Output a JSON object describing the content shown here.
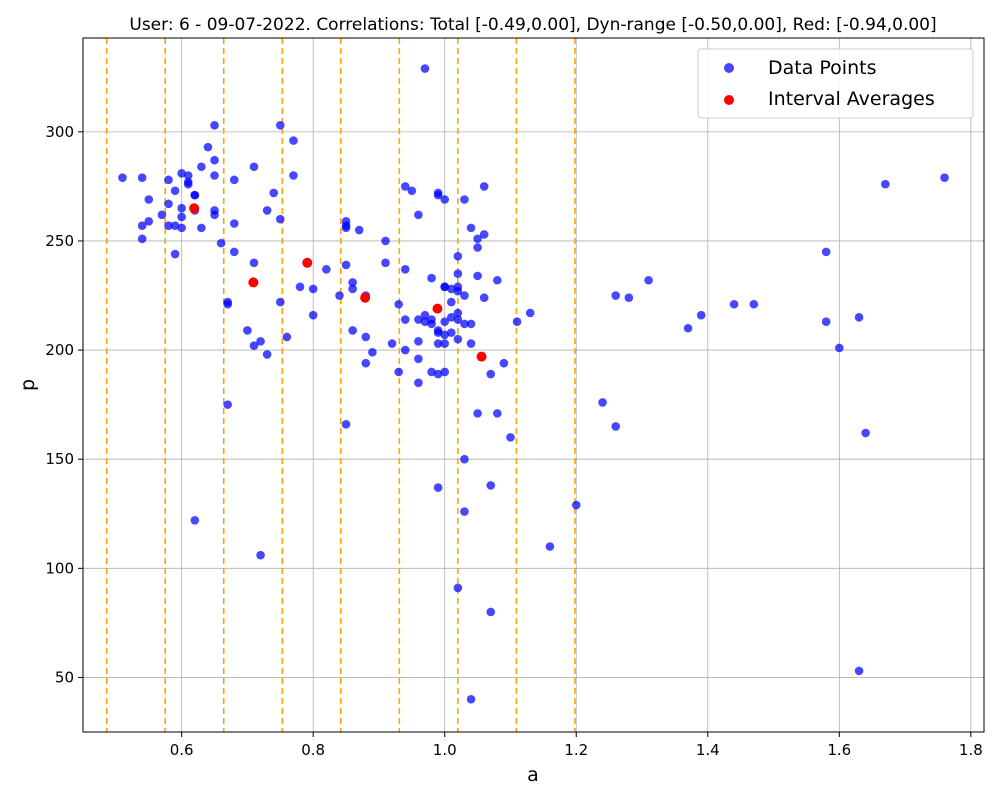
{
  "chart_data": {
    "type": "scatter",
    "title": "User: 6 - 09-07-2022. Correlations: Total [-0.49,0.00], Dyn-range [-0.50,0.00], Red: [-0.94,0.00]",
    "xlabel": "a",
    "ylabel": "p",
    "xlim": [
      0.45,
      1.82
    ],
    "ylim": [
      25,
      343
    ],
    "xticks": [
      0.6,
      0.8,
      1.0,
      1.2,
      1.4,
      1.6,
      1.8
    ],
    "xtick_labels": [
      "0.6",
      "0.8",
      "1.0",
      "1.2",
      "1.4",
      "1.6",
      "1.8"
    ],
    "yticks": [
      50,
      100,
      150,
      200,
      250,
      300
    ],
    "ytick_labels": [
      "50",
      "100",
      "150",
      "200",
      "250",
      "300"
    ],
    "grid": true,
    "legend_position": "top-right",
    "interval_boundaries": [
      0.486,
      0.575,
      0.664,
      0.753,
      0.842,
      0.931,
      1.02,
      1.109,
      1.198
    ],
    "interval_line_color": "#ffa500",
    "series": [
      {
        "name": "Data Points",
        "color": "#0000ff",
        "points": [
          [
            0.51,
            279
          ],
          [
            0.54,
            279
          ],
          [
            0.55,
            269
          ],
          [
            0.54,
            257
          ],
          [
            0.55,
            259
          ],
          [
            0.54,
            251
          ],
          [
            0.57,
            262
          ],
          [
            0.58,
            278
          ],
          [
            0.58,
            267
          ],
          [
            0.58,
            257
          ],
          [
            0.59,
            273
          ],
          [
            0.59,
            257
          ],
          [
            0.59,
            244
          ],
          [
            0.6,
            281
          ],
          [
            0.6,
            265
          ],
          [
            0.6,
            261
          ],
          [
            0.6,
            256
          ],
          [
            0.61,
            280
          ],
          [
            0.61,
            277
          ],
          [
            0.61,
            276
          ],
          [
            0.62,
            271
          ],
          [
            0.62,
            271
          ],
          [
            0.62,
            264
          ],
          [
            0.63,
            284
          ],
          [
            0.63,
            256
          ],
          [
            0.64,
            293
          ],
          [
            0.65,
            303
          ],
          [
            0.65,
            287
          ],
          [
            0.65,
            280
          ],
          [
            0.65,
            264
          ],
          [
            0.65,
            262
          ],
          [
            0.66,
            249
          ],
          [
            0.67,
            222
          ],
          [
            0.67,
            221
          ],
          [
            0.67,
            175
          ],
          [
            0.68,
            278
          ],
          [
            0.68,
            258
          ],
          [
            0.68,
            245
          ],
          [
            0.7,
            209
          ],
          [
            0.71,
            284
          ],
          [
            0.71,
            240
          ],
          [
            0.71,
            202
          ],
          [
            0.72,
            204
          ],
          [
            0.72,
            106
          ],
          [
            0.73,
            198
          ],
          [
            0.73,
            264
          ],
          [
            0.74,
            272
          ],
          [
            0.75,
            303
          ],
          [
            0.75,
            260
          ],
          [
            0.75,
            222
          ],
          [
            0.76,
            206
          ],
          [
            0.77,
            296
          ],
          [
            0.77,
            280
          ],
          [
            0.78,
            229
          ],
          [
            0.8,
            228
          ],
          [
            0.8,
            216
          ],
          [
            0.82,
            237
          ],
          [
            0.84,
            225
          ],
          [
            0.85,
            259
          ],
          [
            0.85,
            257
          ],
          [
            0.85,
            256
          ],
          [
            0.85,
            239
          ],
          [
            0.85,
            166
          ],
          [
            0.86,
            231
          ],
          [
            0.86,
            228
          ],
          [
            0.86,
            209
          ],
          [
            0.87,
            255
          ],
          [
            0.88,
            225
          ],
          [
            0.88,
            206
          ],
          [
            0.88,
            194
          ],
          [
            0.89,
            199
          ],
          [
            0.91,
            250
          ],
          [
            0.91,
            240
          ],
          [
            0.92,
            203
          ],
          [
            0.93,
            221
          ],
          [
            0.93,
            190
          ],
          [
            0.94,
            275
          ],
          [
            0.94,
            237
          ],
          [
            0.94,
            214
          ],
          [
            0.94,
            200
          ],
          [
            0.95,
            273
          ],
          [
            0.96,
            262
          ],
          [
            0.96,
            214
          ],
          [
            0.96,
            204
          ],
          [
            0.96,
            196
          ],
          [
            0.96,
            185
          ],
          [
            0.97,
            329
          ],
          [
            0.97,
            216
          ],
          [
            0.97,
            213
          ],
          [
            0.98,
            233
          ],
          [
            0.98,
            214
          ],
          [
            0.98,
            212
          ],
          [
            0.98,
            190
          ],
          [
            0.99,
            272
          ],
          [
            0.99,
            271
          ],
          [
            0.99,
            209
          ],
          [
            0.99,
            208
          ],
          [
            0.99,
            203
          ],
          [
            0.99,
            189
          ],
          [
            0.99,
            137
          ],
          [
            1.0,
            269
          ],
          [
            1.0,
            229
          ],
          [
            1.0,
            213
          ],
          [
            1.0,
            207
          ],
          [
            1.0,
            203
          ],
          [
            1.0,
            190
          ],
          [
            1.01,
            228
          ],
          [
            1.01,
            222
          ],
          [
            1.01,
            215
          ],
          [
            1.01,
            208
          ],
          [
            1.02,
            243
          ],
          [
            1.02,
            235
          ],
          [
            1.02,
            229
          ],
          [
            1.02,
            227
          ],
          [
            1.02,
            217
          ],
          [
            1.02,
            214
          ],
          [
            1.02,
            205
          ],
          [
            1.02,
            91
          ],
          [
            1.03,
            269
          ],
          [
            1.03,
            225
          ],
          [
            1.03,
            212
          ],
          [
            1.03,
            150
          ],
          [
            1.03,
            126
          ],
          [
            1.04,
            256
          ],
          [
            1.04,
            212
          ],
          [
            1.04,
            203
          ],
          [
            1.04,
            40
          ],
          [
            1.05,
            251
          ],
          [
            1.05,
            247
          ],
          [
            1.05,
            234
          ],
          [
            1.05,
            171
          ],
          [
            1.06,
            275
          ],
          [
            1.06,
            253
          ],
          [
            1.06,
            224
          ],
          [
            1.07,
            189
          ],
          [
            1.07,
            138
          ],
          [
            1.07,
            80
          ],
          [
            1.08,
            232
          ],
          [
            1.08,
            171
          ],
          [
            1.09,
            194
          ],
          [
            1.1,
            160
          ],
          [
            1.11,
            213
          ],
          [
            1.13,
            217
          ],
          [
            1.16,
            110
          ],
          [
            1.2,
            129
          ],
          [
            1.24,
            176
          ],
          [
            1.26,
            225
          ],
          [
            1.26,
            165
          ],
          [
            1.28,
            224
          ],
          [
            1.31,
            232
          ],
          [
            1.37,
            210
          ],
          [
            1.39,
            216
          ],
          [
            1.44,
            221
          ],
          [
            1.47,
            221
          ],
          [
            1.58,
            245
          ],
          [
            1.58,
            213
          ],
          [
            1.6,
            201
          ],
          [
            1.63,
            215
          ],
          [
            1.63,
            53
          ],
          [
            1.64,
            162
          ],
          [
            1.67,
            276
          ],
          [
            1.76,
            279
          ],
          [
            0.62,
            122
          ],
          [
            1.0,
            229
          ]
        ]
      },
      {
        "name": "Interval Averages",
        "color": "#ff0000",
        "points": [
          [
            0.619,
            265
          ],
          [
            0.709,
            231
          ],
          [
            0.791,
            240
          ],
          [
            0.879,
            224
          ],
          [
            0.989,
            219
          ],
          [
            1.056,
            197
          ]
        ]
      }
    ]
  }
}
